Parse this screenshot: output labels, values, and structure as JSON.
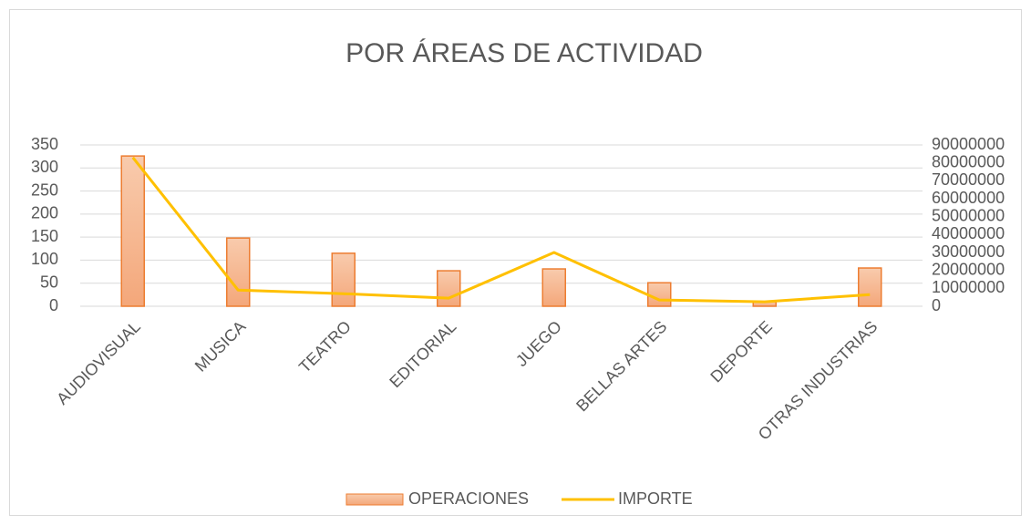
{
  "chart_data": {
    "type": "bar_line",
    "title": "POR ÁREAS DE ACTIVIDAD",
    "categories": [
      "AUDIOVISUAL",
      "MUSICA",
      "TEATRO",
      "EDITORIAL",
      "JUEGO",
      "BELLAS ARTES",
      "DEPORTE",
      "OTRAS INDUSTRIAS"
    ],
    "series": [
      {
        "name": "OPERACIONES",
        "type": "bar",
        "color": "#f4b183",
        "edge_color": "#ed7d31",
        "values": [
          326,
          148,
          115,
          77,
          81,
          51,
          10,
          83
        ]
      },
      {
        "name": "IMPORTE",
        "type": "line",
        "axis": "y2",
        "color": "#ffc000",
        "values": [
          83000000,
          9000000,
          7000000,
          4500000,
          30000000,
          3500000,
          2500000,
          6500000
        ]
      }
    ],
    "ylim": [
      0,
      350
    ],
    "yticks": [
      0,
      50,
      100,
      150,
      200,
      250,
      300,
      350
    ],
    "y2lim": [
      0,
      90000000
    ],
    "y2ticks": [
      0,
      10000000,
      20000000,
      30000000,
      40000000,
      50000000,
      60000000,
      70000000,
      80000000,
      90000000
    ],
    "grid": true,
    "legend": "bottom"
  }
}
